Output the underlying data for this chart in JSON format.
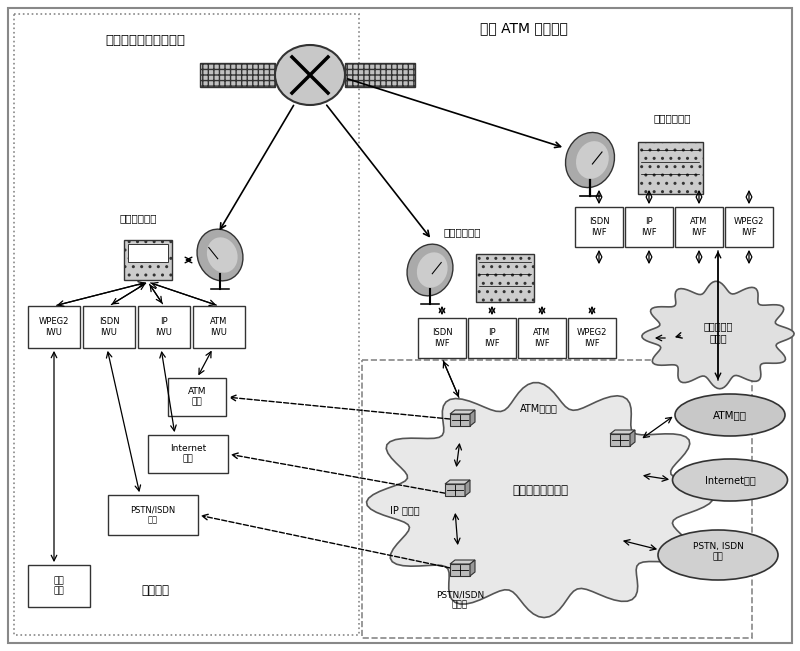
{
  "figsize": [
    8.0,
    6.51
  ],
  "dpi": 100,
  "title": "星上 ATM 交换卫星",
  "subtitle_left": "宽带多媒体卫星通信网",
  "satellite_terminal_label": "卫星用户终端",
  "gateway_top_label": "网关或中心站",
  "gateway_mid_label": "网关或中心站",
  "iwu_labels": [
    "WPEG2\nIWU",
    "ISDN\nIWU",
    "IP\nIWU",
    "ATM\nIWU"
  ],
  "iwf_mid_labels": [
    "ISDN\nIWF",
    "IP\nIWF",
    "ATM\nIWF",
    "WPEG2\nIWF"
  ],
  "iwf_top_labels": [
    "ISDN\nIWF",
    "IP\nIWF",
    "ATM\nIWF",
    "WPEG2\nIWF"
  ],
  "atm_user": "ATM\n用户",
  "internet_user": "Internet\n用户",
  "pstn_user": "PSTN/ISDN\n用户",
  "video_user": "视频\n用户",
  "user_app": "用户应用",
  "audio_cloud": "音视频业务\n提供商",
  "ground_label": "地面信息基础设施",
  "atm_switch_label": "ATM交换机",
  "ip_switch_label": "IP 交换机",
  "pstn_switch_label": "PSTN/ISDN\n交换机",
  "atm_user_r": "ATM用户",
  "internet_user_r": "Internet用户",
  "pstn_user_r": "PSTN, ISDN\n用户"
}
